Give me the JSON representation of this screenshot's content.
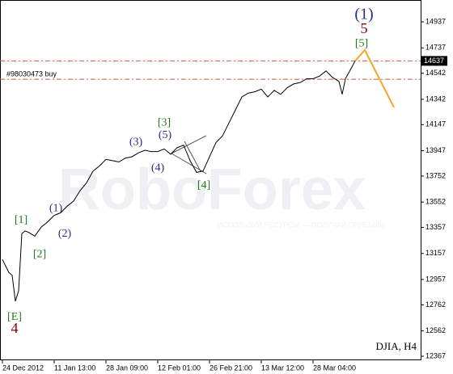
{
  "chart_data": {
    "type": "line",
    "symbol": "DJIA, H4",
    "watermark": "RoboForex",
    "watermark_tagline": "ИСПОЛЬЗУЙ РЕСУРСЫ — ПОЛУЧАЙ ПРИБЫЛЬ",
    "ylim": [
      12336,
      15074
    ],
    "yticks": [
      14937,
      14737,
      14542,
      14342,
      14147,
      13947,
      13752,
      13552,
      13357,
      13157,
      12957,
      12762,
      12562,
      12367
    ],
    "xlim": [
      0,
      130
    ],
    "xticks": [
      {
        "value": 0,
        "label": "24 Dec 2012"
      },
      {
        "value": 16,
        "label": "11 Jan 13:00"
      },
      {
        "value": 32,
        "label": "28 Jan 09:00"
      },
      {
        "value": 48,
        "label": "12 Feb 01:00"
      },
      {
        "value": 64,
        "label": "26 Feb 21:00"
      },
      {
        "value": 80,
        "label": "13 Mar 12:00"
      },
      {
        "value": 96,
        "label": "28 Mar 04:00"
      }
    ],
    "series": [
      {
        "name": "DJIA",
        "color": "#000000",
        "x": [
          0,
          1,
          2,
          3,
          4,
          5,
          6,
          7,
          8,
          10,
          12,
          14,
          16,
          18,
          20,
          22,
          24,
          26,
          28,
          30,
          32,
          34,
          36,
          38,
          40,
          42,
          44,
          46,
          48,
          50,
          52,
          54,
          56,
          58,
          60,
          62,
          64,
          66,
          68,
          70,
          72,
          74,
          76,
          78,
          80,
          82,
          84,
          86,
          88,
          90,
          92,
          94,
          96,
          98,
          100,
          102,
          104,
          105,
          106,
          108,
          109
        ],
        "values": [
          13110,
          13060,
          13010,
          12990,
          12790,
          12870,
          13310,
          13330,
          13320,
          13290,
          13360,
          13400,
          13450,
          13470,
          13520,
          13560,
          13640,
          13700,
          13790,
          13830,
          13880,
          13870,
          13860,
          13890,
          13900,
          13930,
          13950,
          13940,
          13940,
          13960,
          13920,
          13970,
          13990,
          13870,
          13780,
          13790,
          13900,
          14010,
          14060,
          14160,
          14260,
          14360,
          14390,
          14400,
          14420,
          14360,
          14410,
          14380,
          14430,
          14460,
          14470,
          14500,
          14500,
          14520,
          14560,
          14510,
          14480,
          14380,
          14500,
          14590,
          14637
        ]
      }
    ],
    "forecast": {
      "color": "#f5a623",
      "x": [
        109,
        112,
        121
      ],
      "values": [
        14637,
        14720,
        14280
      ]
    },
    "current_price": 14637,
    "order_line": {
      "label": "#98030473 buy",
      "value": 14496
    },
    "level_color": "#d2553a",
    "annotations": [
      {
        "text": "(1)",
        "color": "#2b2b8c",
        "x": 111.75,
        "y": 14987,
        "size": 20
      },
      {
        "text": "5",
        "color": "#8b0000",
        "x": 111.75,
        "y": 14875,
        "size": 18
      },
      {
        "text": "[5]",
        "color": "#1f7a1f",
        "x": 111,
        "y": 14769,
        "size": 14
      },
      {
        "text": "[1]",
        "color": "#1f7a1f",
        "x": 5.75,
        "y": 13410,
        "size": 14
      },
      {
        "text": "[2]",
        "color": "#1f7a1f",
        "x": 11.5,
        "y": 13149,
        "size": 14
      },
      {
        "text": "(1)",
        "color": "#2b2b8c",
        "x": 16.5,
        "y": 13503,
        "size": 14
      },
      {
        "text": "(2)",
        "color": "#2b2b8c",
        "x": 19.25,
        "y": 13305,
        "size": 14
      },
      {
        "text": "[3]",
        "color": "#1f7a1f",
        "x": 50,
        "y": 14161,
        "size": 14
      },
      {
        "text": "(3)",
        "color": "#2b2b8c",
        "x": 41.25,
        "y": 14012,
        "size": 14
      },
      {
        "text": "(5)",
        "color": "#2b2b8c",
        "x": 50.25,
        "y": 14062,
        "size": 14
      },
      {
        "text": "(4)",
        "color": "#2b2b8c",
        "x": 48,
        "y": 13813,
        "size": 14
      },
      {
        "text": "[4]",
        "color": "#1f7a1f",
        "x": 62.25,
        "y": 13677,
        "size": 14
      },
      {
        "text": "[E]",
        "color": "#1f7a1f",
        "x": 3.75,
        "y": 12665,
        "size": 14
      },
      {
        "text": "4",
        "color": "#8b0000",
        "x": 3.75,
        "y": 12572,
        "size": 18
      }
    ]
  }
}
